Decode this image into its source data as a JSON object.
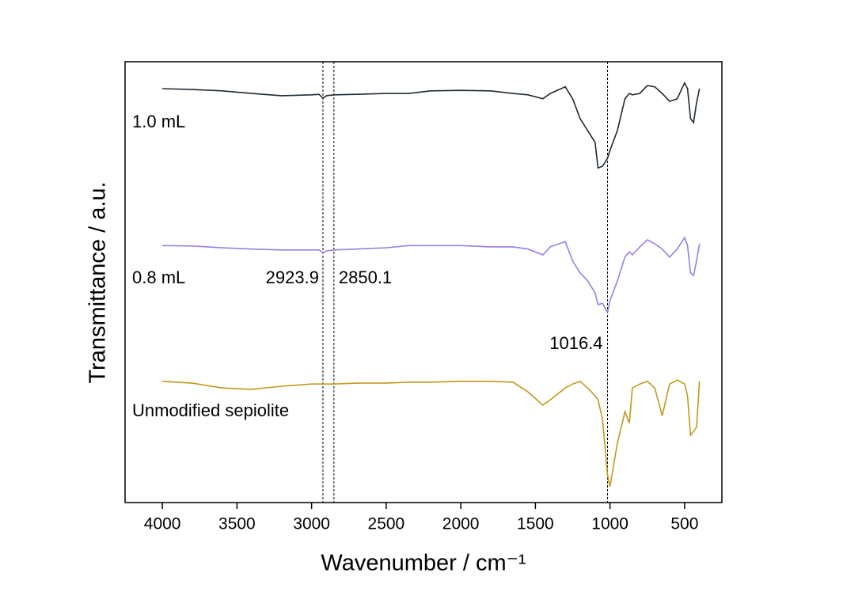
{
  "chart_data": {
    "type": "line",
    "xlabel": "Wavenumber / cm⁻¹",
    "ylabel": "Transmittance / a.u.",
    "x": [
      4000,
      3800,
      3600,
      3400,
      3200,
      3000,
      2950,
      2923.9,
      2900,
      2850,
      2700,
      2500,
      2350,
      2200,
      2000,
      1800,
      1650,
      1550,
      1450,
      1400,
      1300,
      1250,
      1200,
      1150,
      1100,
      1080,
      1050,
      1016.4,
      1000,
      950,
      900,
      870,
      850,
      800,
      750,
      700,
      650,
      600,
      550,
      500,
      480,
      460,
      440,
      420,
      400
    ],
    "series": [
      {
        "name": "1.0 mL",
        "color": "#1f2a33",
        "values": [
          93.9,
          93.7,
          93.4,
          92.8,
          92.3,
          92.5,
          92.6,
          91.7,
          92.3,
          92.5,
          92.6,
          92.8,
          92.8,
          93.4,
          93.5,
          93.4,
          92.8,
          92.5,
          91.6,
          92.8,
          94.3,
          91.6,
          87.1,
          84.4,
          81.7,
          75.9,
          76.3,
          78.1,
          79.9,
          84.4,
          91.6,
          92.8,
          92.5,
          92.8,
          94.6,
          94.3,
          92.8,
          91.0,
          91.6,
          95.2,
          93.9,
          87.1,
          86.2,
          90.7,
          93.9
        ]
      },
      {
        "name": "0.8 mL",
        "color": "#9b7fe6",
        "values": [
          58.3,
          58.2,
          57.8,
          57.5,
          57.3,
          57.3,
          57.3,
          56.6,
          57.1,
          57.3,
          57.5,
          57.8,
          58.3,
          58.3,
          58.3,
          58.0,
          58.0,
          57.5,
          56.2,
          58.0,
          59.2,
          54.8,
          52.1,
          50.3,
          47.6,
          44.9,
          45.2,
          43.1,
          45.8,
          50.3,
          55.7,
          56.9,
          56.2,
          58.0,
          59.6,
          58.7,
          57.5,
          55.7,
          57.5,
          60.1,
          58.3,
          52.1,
          51.5,
          54.8,
          58.7
        ]
      },
      {
        "name": "Unmodified sepiolite",
        "color": "#c09a1e",
        "values": [
          27.5,
          27.1,
          26.0,
          25.7,
          26.4,
          26.9,
          26.9,
          26.9,
          26.9,
          26.9,
          27.1,
          27.1,
          27.3,
          27.3,
          27.5,
          27.5,
          27.3,
          25.1,
          22.1,
          23.3,
          26.0,
          26.9,
          27.5,
          26.0,
          24.2,
          23.3,
          18.9,
          6.3,
          3.6,
          13.5,
          20.6,
          18.0,
          26.0,
          26.9,
          27.5,
          26.0,
          19.7,
          26.9,
          27.8,
          26.9,
          24.2,
          15.3,
          16.2,
          17.1,
          27.5
        ]
      }
    ],
    "xlim": [
      4250,
      250
    ],
    "xticks": [
      4000,
      3500,
      3000,
      2500,
      2000,
      1500,
      1000,
      500
    ],
    "ylim": [
      0,
      100
    ],
    "vlines": [
      2923.9,
      2850.1,
      1016.4
    ]
  }
}
